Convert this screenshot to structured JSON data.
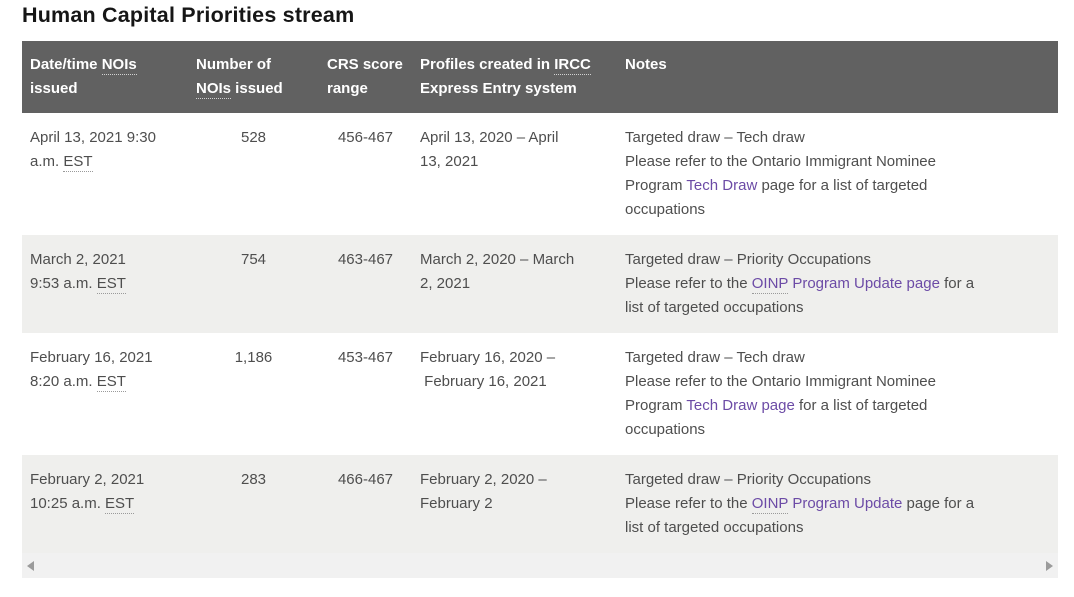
{
  "title": "Human Capital Priorities stream",
  "colors": {
    "header-bg": "#616161",
    "header-text": "#ffffff",
    "body-text": "#4e4e4e",
    "link": "#6c4ba6",
    "zebra": "#efefed",
    "scroll-track": "#f1f1f1",
    "arrow": "#9b9b9b",
    "title": "#161616"
  },
  "table": {
    "columns": [
      {
        "id": "date",
        "header_lines": [
          [
            {
              "t": "Date/time "
            },
            {
              "t": "NOIs",
              "abbr": true
            }
          ],
          [
            {
              "t": "issued"
            }
          ]
        ]
      },
      {
        "id": "number",
        "header_lines": [
          [
            {
              "t": "Number of"
            }
          ],
          [
            {
              "t": "NOIs",
              "abbr": true
            },
            {
              "t": " issued"
            }
          ]
        ]
      },
      {
        "id": "crs",
        "header_lines": [
          [
            {
              "t": "CRS score"
            }
          ],
          [
            {
              "t": "range"
            }
          ]
        ]
      },
      {
        "id": "profiles",
        "header_lines": [
          [
            {
              "t": "Profiles created in "
            },
            {
              "t": "IRCC",
              "abbr": true
            }
          ],
          [
            {
              "t": "Express Entry system"
            }
          ]
        ]
      },
      {
        "id": "notes",
        "header_lines": [
          [
            {
              "t": "Notes"
            }
          ]
        ]
      }
    ],
    "rows": [
      {
        "date": [
          [
            {
              "t": "April 13, 2021 9:30"
            }
          ],
          [
            {
              "t": "a.m. "
            },
            {
              "t": "EST",
              "abbr": true
            }
          ]
        ],
        "number": [
          [
            {
              "t": "528"
            }
          ]
        ],
        "crs": [
          [
            {
              "t": "456-467"
            }
          ]
        ],
        "profiles": [
          [
            {
              "t": "April 13, 2020 – April"
            }
          ],
          [
            {
              "t": "13, 2021"
            }
          ]
        ],
        "notes": [
          [
            {
              "t": "Targeted draw – Tech draw"
            }
          ],
          [
            {
              "t": "Please refer to the Ontario Immigrant Nominee"
            }
          ],
          [
            {
              "t": "Program "
            },
            {
              "t": "Tech Draw",
              "link": true
            },
            {
              "t": " page for a list of targeted"
            }
          ],
          [
            {
              "t": "occupations"
            }
          ]
        ]
      },
      {
        "date": [
          [
            {
              "t": "March 2, 2021"
            }
          ],
          [
            {
              "t": "9:53 a.m. "
            },
            {
              "t": "EST",
              "abbr": true
            }
          ]
        ],
        "number": [
          [
            {
              "t": "754"
            }
          ]
        ],
        "crs": [
          [
            {
              "t": "463-467"
            }
          ]
        ],
        "profiles": [
          [
            {
              "t": "March 2, 2020 – March"
            }
          ],
          [
            {
              "t": "2, 2021"
            }
          ]
        ],
        "notes": [
          [
            {
              "t": "Targeted draw – Priority Occupations"
            }
          ],
          [
            {
              "t": "Please refer to the "
            },
            {
              "t": "OINP",
              "link": true,
              "abbr": true
            },
            {
              "t": " Program Update page",
              "link": true
            },
            {
              "t": " for a"
            }
          ],
          [
            {
              "t": "list of targeted occupations"
            }
          ]
        ]
      },
      {
        "date": [
          [
            {
              "t": "February 16, 2021"
            }
          ],
          [
            {
              "t": "8:20 a.m. "
            },
            {
              "t": "EST",
              "abbr": true
            }
          ]
        ],
        "number": [
          [
            {
              "t": "1,186"
            }
          ]
        ],
        "crs": [
          [
            {
              "t": "453-467"
            }
          ]
        ],
        "profiles": [
          [
            {
              "t": "February 16, 2020 –"
            }
          ],
          [
            {
              "t": " February 16, 2021"
            }
          ]
        ],
        "notes": [
          [
            {
              "t": "Targeted draw – Tech draw"
            }
          ],
          [
            {
              "t": "Please refer to the Ontario Immigrant Nominee"
            }
          ],
          [
            {
              "t": "Program "
            },
            {
              "t": "Tech Draw page",
              "link": true
            },
            {
              "t": " for a list of targeted"
            }
          ],
          [
            {
              "t": "occupations"
            }
          ]
        ]
      },
      {
        "date": [
          [
            {
              "t": "February 2, 2021"
            }
          ],
          [
            {
              "t": "10:25 a.m. "
            },
            {
              "t": "EST",
              "abbr": true
            }
          ]
        ],
        "number": [
          [
            {
              "t": "283"
            }
          ]
        ],
        "crs": [
          [
            {
              "t": "466-467"
            }
          ]
        ],
        "profiles": [
          [
            {
              "t": "February 2, 2020 –"
            }
          ],
          [
            {
              "t": "February 2"
            }
          ]
        ],
        "notes": [
          [
            {
              "t": "Targeted draw – Priority Occupations"
            }
          ],
          [
            {
              "t": "Please refer to the "
            },
            {
              "t": "OINP",
              "link": true,
              "abbr": true
            },
            {
              "t": " Program Update",
              "link": true
            },
            {
              "t": " page for a"
            }
          ],
          [
            {
              "t": "list of targeted occupations"
            }
          ]
        ]
      }
    ]
  },
  "scrollbar": {
    "left_arrow_icon": "scroll-left-arrow",
    "right_arrow_icon": "scroll-right-arrow"
  }
}
